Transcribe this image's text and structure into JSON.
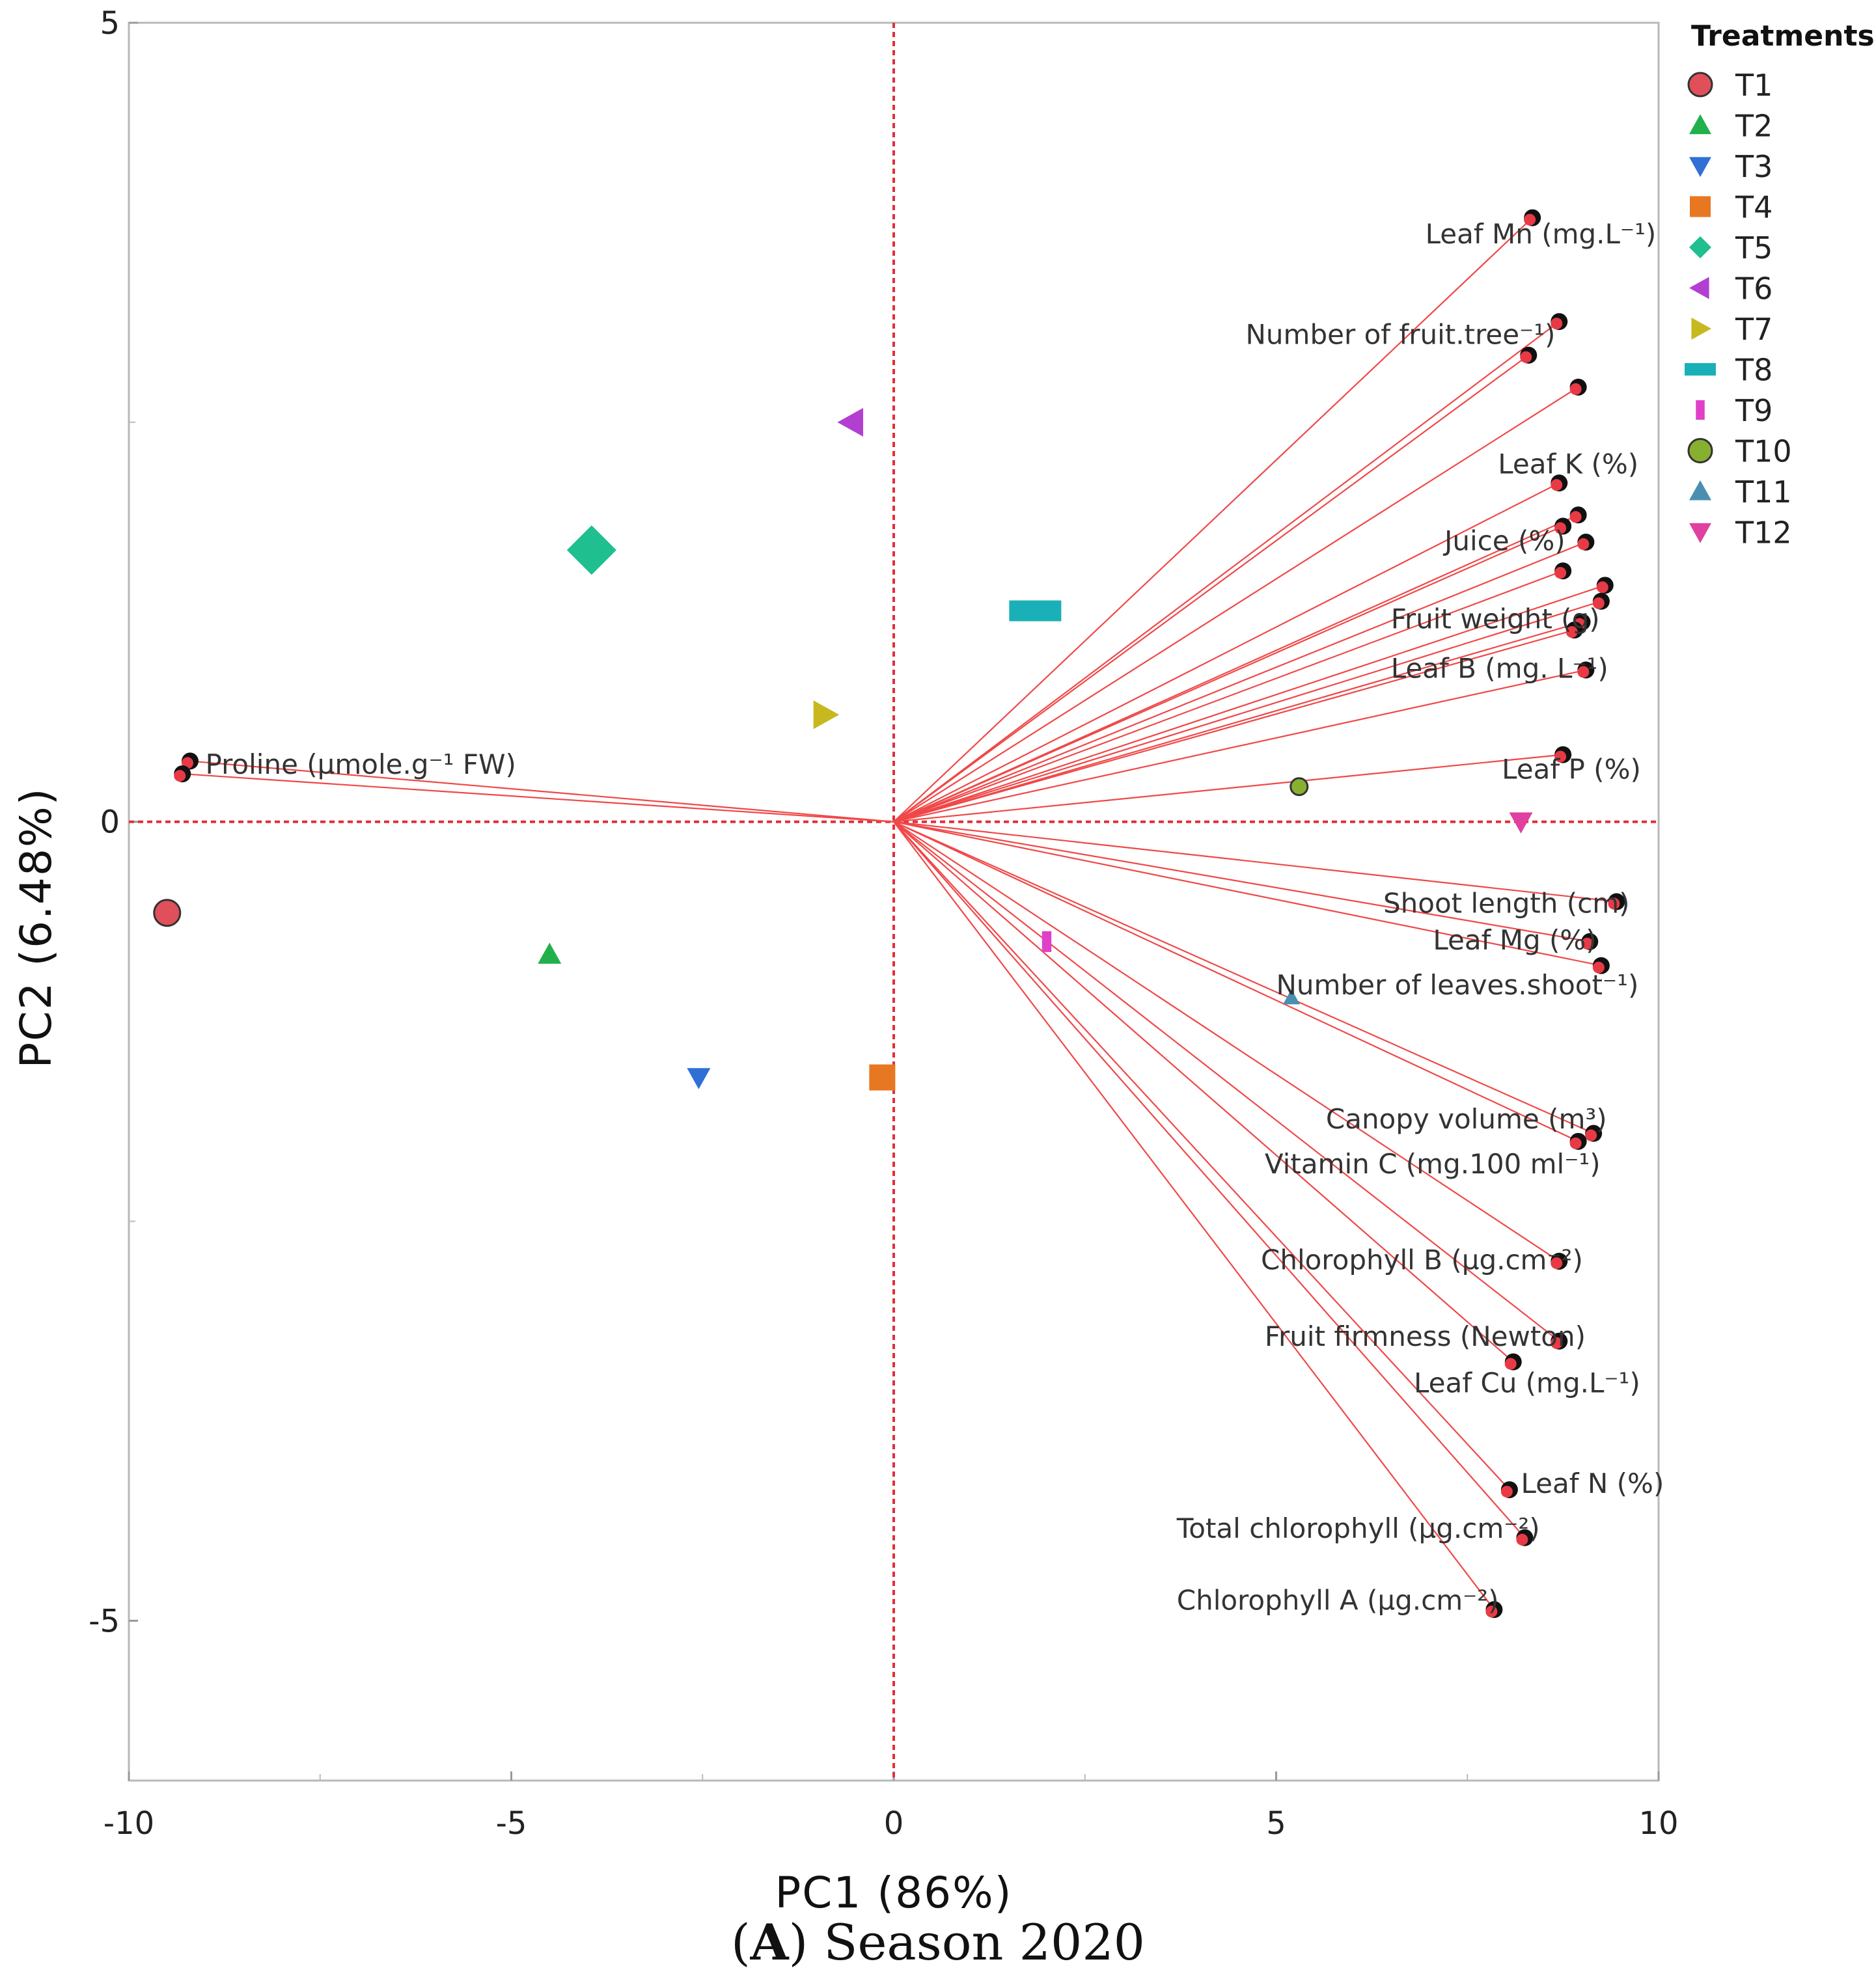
{
  "chart_data": {
    "type": "scatter",
    "subtype": "pca-biplot",
    "xlabel": "PC1 (86%)",
    "ylabel": "PC2 (6.48%)",
    "xlim": [
      -10,
      10
    ],
    "ylim": [
      -6,
      5
    ],
    "x_ticks": [
      -10,
      -5,
      0,
      5,
      10
    ],
    "y_ticks": [
      5,
      0,
      -5
    ],
    "x_tick_labels": [
      "-10",
      "-5",
      "0",
      "5",
      "10"
    ],
    "y_tick_labels": [
      "5",
      "0",
      "-5"
    ],
    "reference_lines": {
      "x": 0,
      "y": 0
    },
    "legend_title": "Treatments",
    "legend_position": "top-right",
    "treatments": [
      {
        "name": "T1",
        "x": -9.5,
        "y": -0.57,
        "shape": "circle",
        "color": "#e0505a"
      },
      {
        "name": "T2",
        "x": -4.5,
        "y": -0.83,
        "shape": "triangle-up",
        "color": "#22b04a"
      },
      {
        "name": "T3",
        "x": -2.55,
        "y": -1.6,
        "shape": "triangle-down",
        "color": "#2f6fd6"
      },
      {
        "name": "T4",
        "x": -0.15,
        "y": -1.6,
        "shape": "square",
        "color": "#e87722"
      },
      {
        "name": "T5",
        "x": -3.95,
        "y": 1.7,
        "shape": "diamond",
        "color": "#1fbf8f"
      },
      {
        "name": "T6",
        "x": -0.55,
        "y": 2.5,
        "shape": "triangle-left",
        "color": "#b23fd1"
      },
      {
        "name": "T7",
        "x": -0.9,
        "y": 0.67,
        "shape": "triangle-right",
        "color": "#c8b820"
      },
      {
        "name": "T8",
        "x": 1.85,
        "y": 1.32,
        "shape": "rect",
        "color": "#1ab0b8"
      },
      {
        "name": "T9",
        "x": 2.0,
        "y": -0.75,
        "shape": "bar",
        "color": "#e040c8"
      },
      {
        "name": "T10",
        "x": 5.3,
        "y": 0.22,
        "shape": "circle",
        "color": "#88b030"
      },
      {
        "name": "T11",
        "x": 5.2,
        "y": -1.1,
        "shape": "triangle-up",
        "color": "#4a8fb0"
      },
      {
        "name": "T12",
        "x": 8.2,
        "y": 0.0,
        "shape": "triangle-down",
        "color": "#e040a0"
      }
    ],
    "loadings": [
      {
        "x": 8.35,
        "y": 3.78
      },
      {
        "x": 8.7,
        "y": 3.13
      },
      {
        "x": 8.3,
        "y": 2.92
      },
      {
        "x": 8.95,
        "y": 2.72
      },
      {
        "x": 8.7,
        "y": 2.12
      },
      {
        "x": 8.95,
        "y": 1.92
      },
      {
        "x": 8.75,
        "y": 1.85
      },
      {
        "x": 9.05,
        "y": 1.75
      },
      {
        "x": 8.75,
        "y": 1.57
      },
      {
        "x": 9.3,
        "y": 1.48
      },
      {
        "x": 9.25,
        "y": 1.38
      },
      {
        "x": 9.0,
        "y": 1.25
      },
      {
        "x": 8.9,
        "y": 1.2
      },
      {
        "x": 9.05,
        "y": 0.95
      },
      {
        "x": 8.75,
        "y": 0.42
      },
      {
        "x": 9.45,
        "y": -0.5
      },
      {
        "x": 9.1,
        "y": -0.75
      },
      {
        "x": 9.25,
        "y": -0.9
      },
      {
        "x": 9.15,
        "y": -1.95
      },
      {
        "x": 8.95,
        "y": -2.0
      },
      {
        "x": 8.7,
        "y": -2.75
      },
      {
        "x": 8.7,
        "y": -3.25
      },
      {
        "x": 8.1,
        "y": -3.38
      },
      {
        "x": 8.05,
        "y": -4.18
      },
      {
        "x": 8.25,
        "y": -4.48
      },
      {
        "x": 7.85,
        "y": -4.93
      },
      {
        "x": -9.2,
        "y": 0.38
      },
      {
        "x": -9.3,
        "y": 0.3
      }
    ],
    "variable_labels": [
      {
        "text": "Leaf Mn (mg.L⁻¹)",
        "x": 6.95,
        "y": 3.62
      },
      {
        "text": "Number of fruit.tree⁻¹)",
        "x": 4.6,
        "y": 2.99
      },
      {
        "text": "Leaf K (%)",
        "x": 7.9,
        "y": 2.18
      },
      {
        "text": "Juice (%)",
        "x": 7.2,
        "y": 1.7
      },
      {
        "text": "Fruit weight (g)",
        "x": 6.5,
        "y": 1.21
      },
      {
        "text": "Leaf B (mg. L⁻¹)",
        "x": 6.5,
        "y": 0.9
      },
      {
        "text": "Leaf P (%)",
        "x": 7.95,
        "y": 0.27
      },
      {
        "text": "Proline (µmole.g⁻¹ FW)",
        "x": -9.0,
        "y": 0.3
      },
      {
        "text": "Shoot length (cm)",
        "x": 6.4,
        "y": -0.57
      },
      {
        "text": "Leaf Mg (%)",
        "x": 7.05,
        "y": -0.8
      },
      {
        "text": "Number of leaves.shoot⁻¹)",
        "x": 5.0,
        "y": -1.08
      },
      {
        "text": "Canopy volume (m³)",
        "x": 5.65,
        "y": -1.92
      },
      {
        "text": "Vitamin C (mg.100 ml⁻¹)",
        "x": 4.85,
        "y": -2.2
      },
      {
        "text": "Chlorophyll  B (µg.cm⁻²)",
        "x": 4.8,
        "y": -2.8
      },
      {
        "text": "Fruit firmness (Newton)",
        "x": 4.85,
        "y": -3.28
      },
      {
        "text": "Leaf Cu (mg.L⁻¹)",
        "x": 6.8,
        "y": -3.57
      },
      {
        "text": "Leaf N (%)",
        "x": 8.2,
        "y": -4.2
      },
      {
        "text": "Total chlorophyll  (µg.cm⁻²)",
        "x": 3.7,
        "y": -4.48
      },
      {
        "text": "Chlorophyll   A (µg.cm⁻²)",
        "x": 3.7,
        "y": -4.93
      }
    ]
  },
  "caption": {
    "letter": "A",
    "text": " Season 2020"
  }
}
